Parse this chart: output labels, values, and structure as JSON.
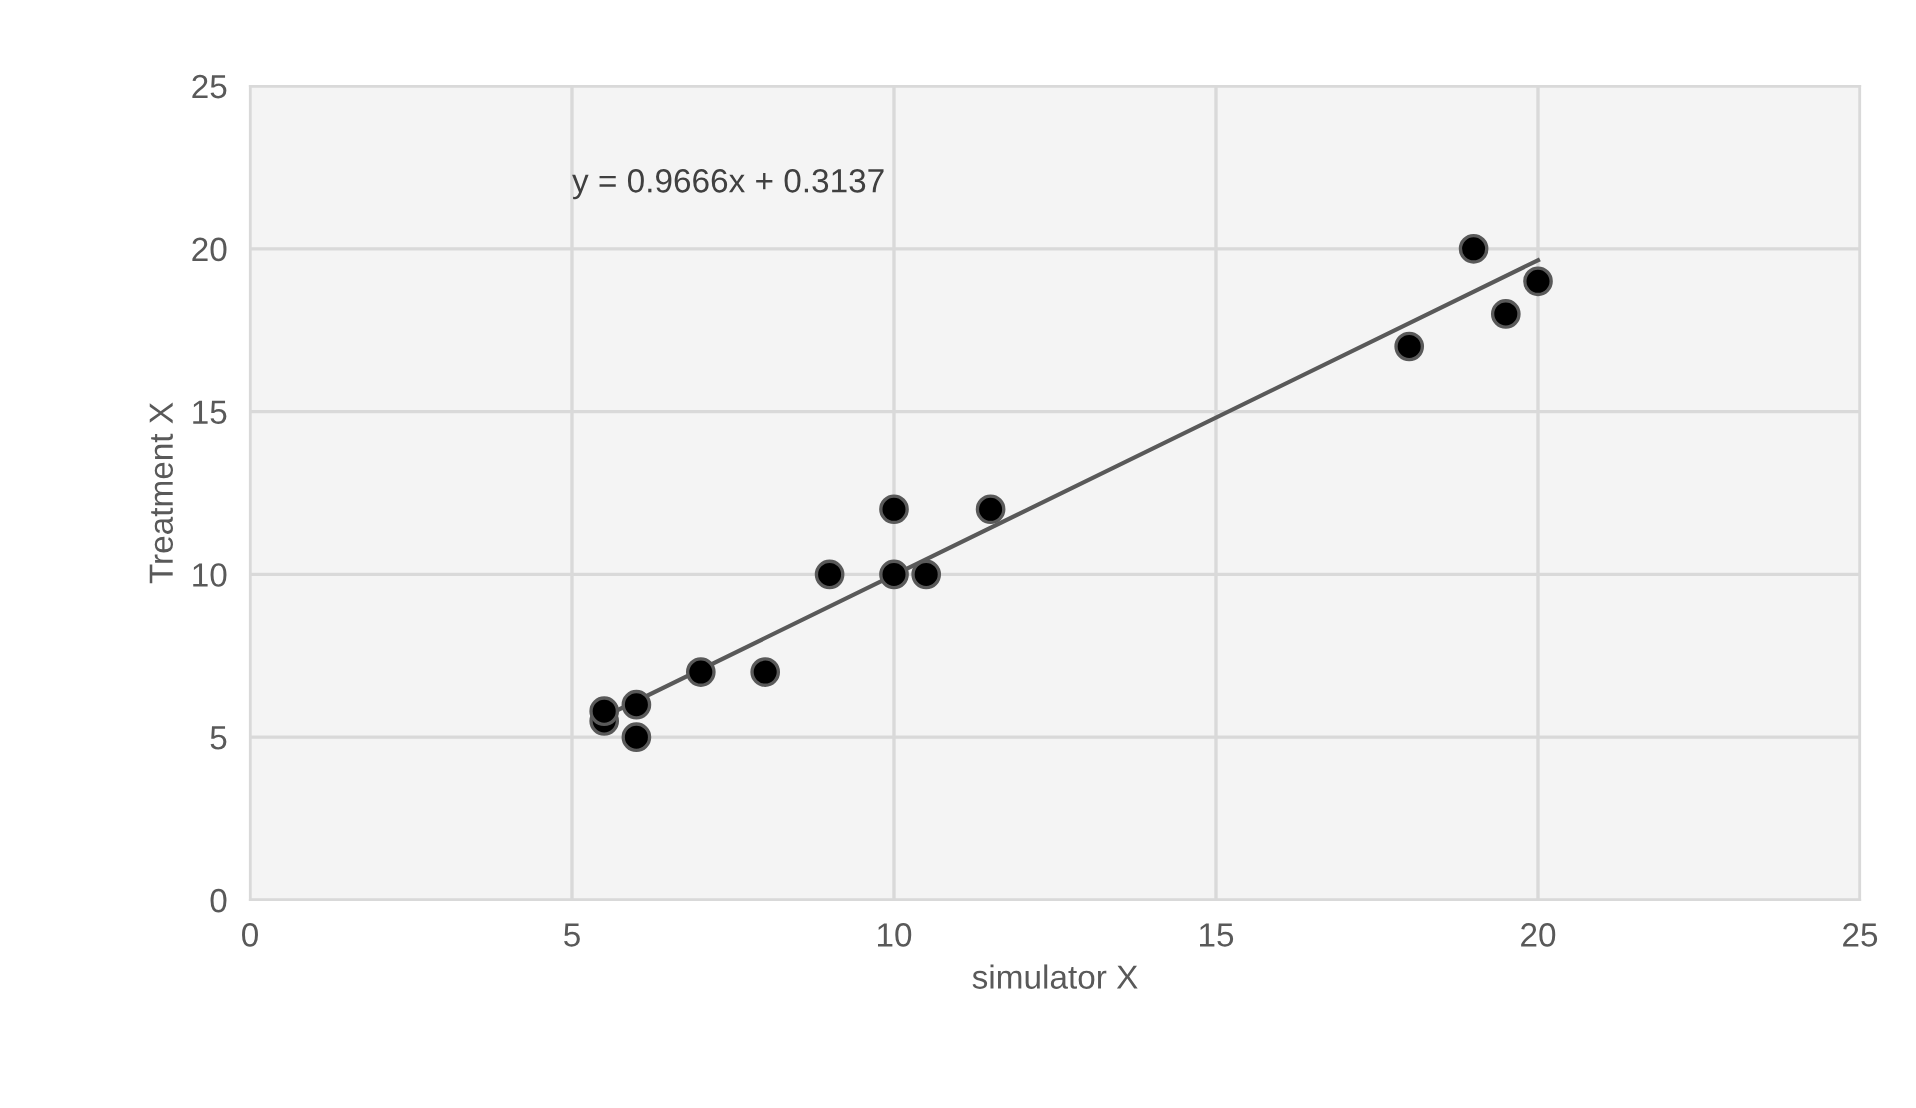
{
  "chart_data": {
    "type": "scatter",
    "xlabel": "simulator X",
    "ylabel": "Treatment X",
    "annotations": [
      "y = 0.9666x + 0.3137"
    ],
    "xlim": [
      0,
      25
    ],
    "ylim": [
      0,
      25
    ],
    "xticks": [
      0,
      5,
      10,
      15,
      20,
      25
    ],
    "yticks": [
      0,
      5,
      10,
      15,
      20,
      25
    ],
    "grid": true,
    "marker": "circle",
    "series": [
      {
        "color": "#000000",
        "x": [
          5.5,
          5.5,
          6,
          6,
          7,
          8,
          9,
          10,
          10,
          10.5,
          11.5,
          18,
          19,
          19.5,
          20
        ],
        "values": [
          5.5,
          5.8,
          6,
          5,
          7,
          7,
          10,
          12,
          10,
          10,
          12,
          17,
          20,
          18,
          19
        ]
      },
      {
        "type": "line",
        "color": "#595959",
        "line_style": "solid",
        "marker": "none",
        "x": [
          5.5,
          20
        ],
        "values": [
          5.63,
          19.65
        ]
      }
    ]
  }
}
